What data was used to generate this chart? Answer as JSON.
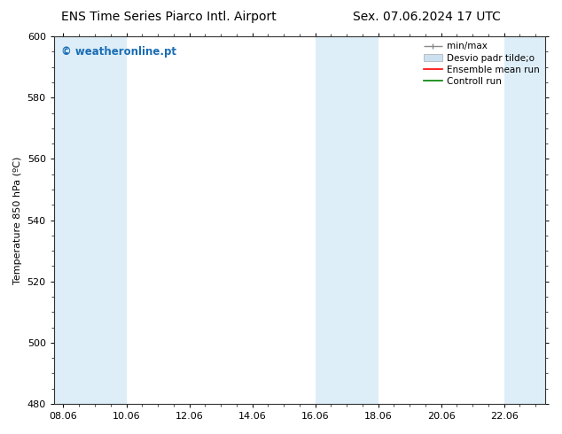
{
  "title_left": "ENS Time Series Piarco Intl. Airport",
  "title_right": "Sex. 07.06.2024 17 UTC",
  "ylabel": "Temperature 850 hPa (ºC)",
  "ylim": [
    480,
    600
  ],
  "yticks": [
    480,
    500,
    520,
    540,
    560,
    580,
    600
  ],
  "xtick_labels": [
    "08.06",
    "10.06",
    "12.06",
    "14.06",
    "16.06",
    "18.06",
    "20.06",
    "22.06"
  ],
  "xtick_positions": [
    0,
    2,
    4,
    6,
    8,
    10,
    12,
    14
  ],
  "xlim": [
    -0.3,
    15.3
  ],
  "background_color": "#ffffff",
  "plot_bg_color": "#ffffff",
  "shaded_bands": [
    {
      "x_start": -0.3,
      "x_end": 1.0,
      "color": "#ddeef8"
    },
    {
      "x_start": 1.0,
      "x_end": 3.0,
      "color": "#ddeef8"
    },
    {
      "x_start": 7.0,
      "x_end": 9.0,
      "color": "#ddeef8"
    },
    {
      "x_start": 13.0,
      "x_end": 15.3,
      "color": "#ddeef8"
    }
  ],
  "watermark_text": "© weatheronline.pt",
  "watermark_color": "#1a6eb5",
  "legend_entries": [
    {
      "label": "min/max",
      "color": "#aaaaaa",
      "type": "errorbar"
    },
    {
      "label": "Desvio padr tilde;o",
      "color": "#cce0f0",
      "type": "band"
    },
    {
      "label": "Ensemble mean run",
      "color": "#ff0000",
      "type": "line"
    },
    {
      "label": "Controll run",
      "color": "#008000",
      "type": "line"
    }
  ],
  "title_fontsize": 10,
  "tick_fontsize": 8,
  "legend_fontsize": 7.5,
  "ylabel_fontsize": 8
}
